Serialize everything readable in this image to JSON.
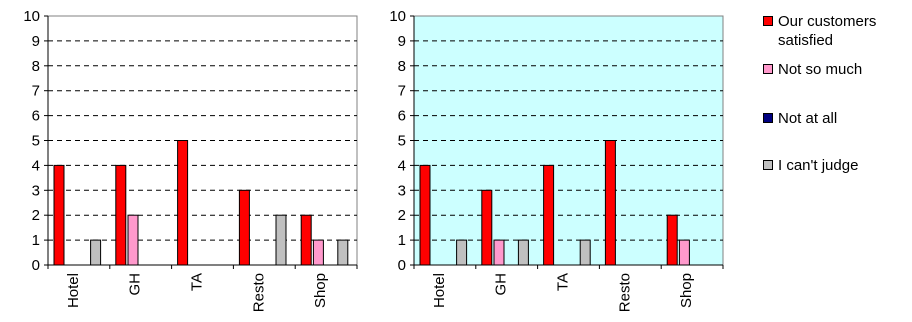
{
  "chart_data": [
    {
      "type": "bar",
      "background": "#ffffff",
      "categories": [
        "Hotel",
        "GH",
        "TA",
        "Resto",
        "Shop"
      ],
      "ylim": [
        0,
        10
      ],
      "yticks": [
        0,
        1,
        2,
        3,
        4,
        5,
        6,
        7,
        8,
        9,
        10
      ],
      "grid": "dashed horizontal",
      "series": [
        {
          "name": "Our customers satisfied",
          "color": "#ff0000",
          "values": [
            4,
            4,
            5,
            3,
            2
          ]
        },
        {
          "name": "Not so much",
          "color": "#ff99cc",
          "values": [
            0,
            2,
            0,
            0,
            1
          ]
        },
        {
          "name": "Not at all",
          "color": "#000080",
          "values": [
            0,
            0,
            0,
            0,
            0
          ]
        },
        {
          "name": "I can't judge",
          "color": "#c0c0c0",
          "values": [
            1,
            0,
            0,
            2,
            1
          ]
        }
      ]
    },
    {
      "type": "bar",
      "background": "#ccffff",
      "categories": [
        "Hotel",
        "GH",
        "TA",
        "Resto",
        "Shop"
      ],
      "ylim": [
        0,
        10
      ],
      "yticks": [
        0,
        1,
        2,
        3,
        4,
        5,
        6,
        7,
        8,
        9,
        10
      ],
      "grid": "dashed horizontal",
      "series": [
        {
          "name": "Our customers satisfied",
          "color": "#ff0000",
          "values": [
            4,
            3,
            4,
            5,
            2
          ]
        },
        {
          "name": "Not so much",
          "color": "#ff99cc",
          "values": [
            0,
            1,
            0,
            0,
            1
          ]
        },
        {
          "name": "Not at all",
          "color": "#000080",
          "values": [
            0,
            0,
            0,
            0,
            0
          ]
        },
        {
          "name": "I can't judge",
          "color": "#c0c0c0",
          "values": [
            1,
            1,
            1,
            0,
            0
          ]
        }
      ]
    }
  ],
  "legend": {
    "placement": "right",
    "items": [
      {
        "label": "Our customers satisfied",
        "color": "#ff0000"
      },
      {
        "label": "Not so much",
        "color": "#ff99cc"
      },
      {
        "label": "Not at all",
        "color": "#000080"
      },
      {
        "label": "I can't judge",
        "color": "#c0c0c0"
      }
    ]
  }
}
